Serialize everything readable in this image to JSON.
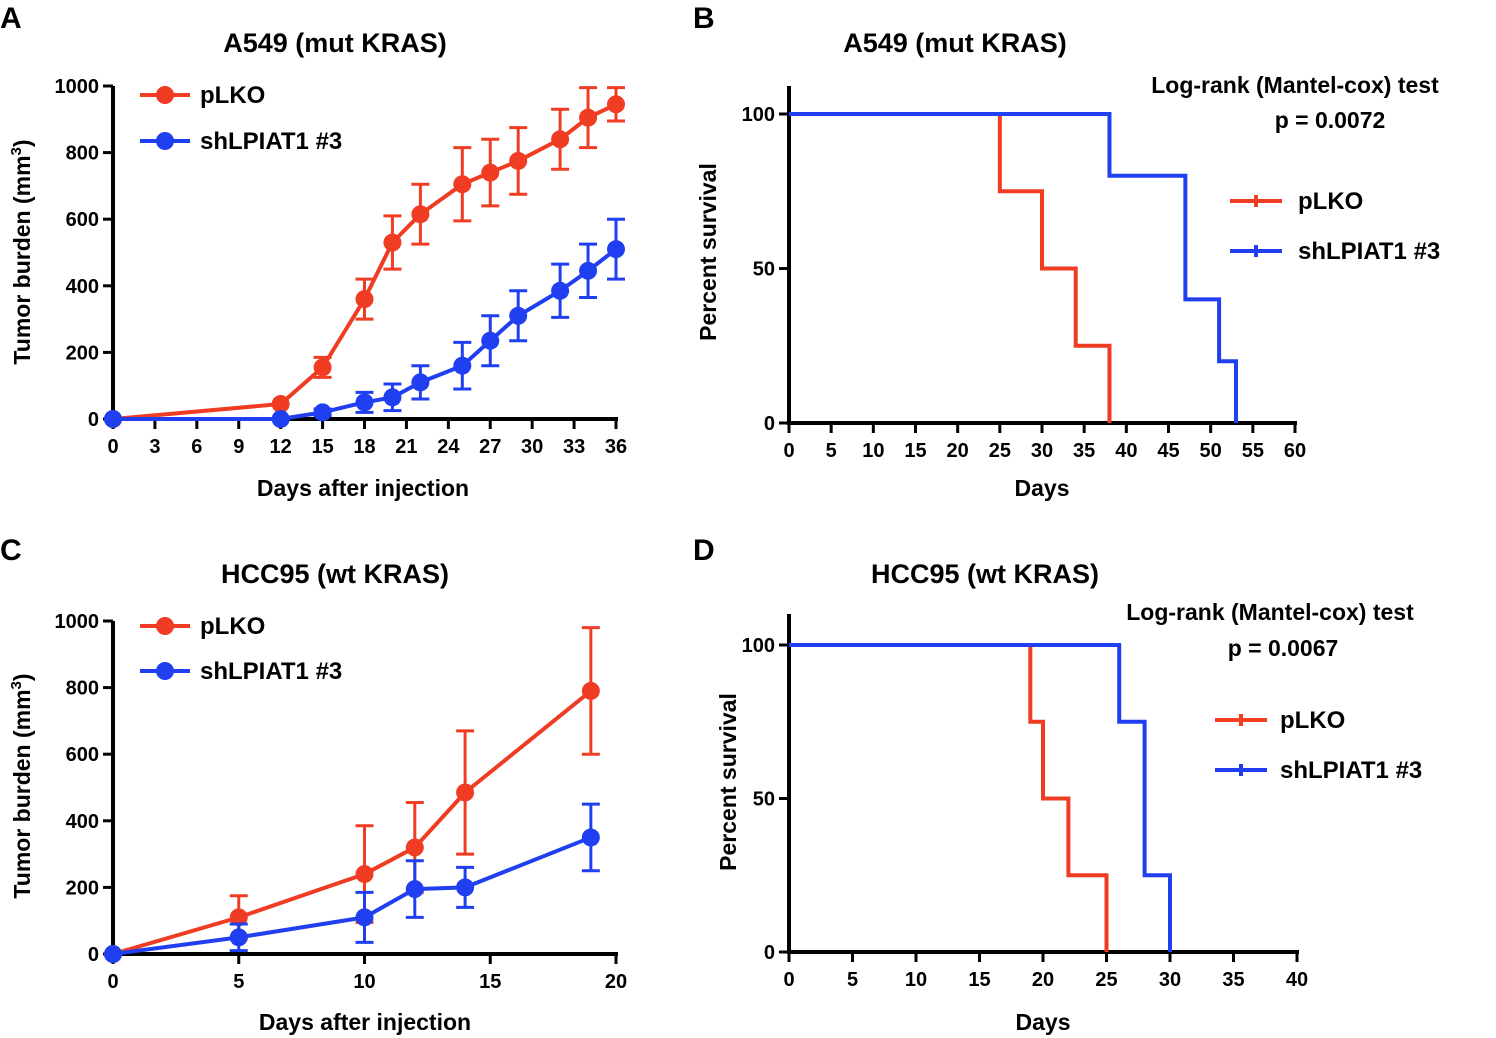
{
  "colors": {
    "red": "#f03c23",
    "blue": "#1f3ff0",
    "axis": "#000000"
  },
  "chart_data": [
    {
      "id": "A",
      "panel_label": "A",
      "type": "line",
      "title": "A549 (mut KRAS)",
      "xlabel": "Days after injection",
      "ylabel": "Tumor burden (mm",
      "ylabel_sup": "3",
      "ylabel_end": ")",
      "xlim": [
        0,
        36
      ],
      "ylim": [
        0,
        1000
      ],
      "xticks": [
        0,
        3,
        6,
        9,
        12,
        15,
        18,
        21,
        24,
        27,
        30,
        33,
        36
      ],
      "yticks": [
        0,
        200,
        400,
        600,
        800,
        1000
      ],
      "series": [
        {
          "name": "pLKO",
          "color": "red",
          "x": [
            0,
            12,
            15,
            18,
            20,
            22,
            25,
            27,
            29,
            32,
            34,
            36
          ],
          "y": [
            0,
            45,
            155,
            360,
            530,
            615,
            705,
            740,
            775,
            840,
            905,
            945
          ],
          "err": [
            0,
            0,
            30,
            60,
            80,
            90,
            110,
            100,
            100,
            90,
            90,
            50
          ]
        },
        {
          "name": "shLPIAT1 #3",
          "color": "blue",
          "x": [
            0,
            12,
            15,
            18,
            20,
            22,
            25,
            27,
            29,
            32,
            34,
            36
          ],
          "y": [
            0,
            0,
            20,
            50,
            65,
            110,
            160,
            235,
            310,
            385,
            445,
            510
          ],
          "err": [
            0,
            0,
            10,
            30,
            40,
            50,
            70,
            75,
            75,
            80,
            80,
            90
          ]
        }
      ]
    },
    {
      "id": "B",
      "panel_label": "B",
      "type": "line",
      "subtype": "survival-step",
      "title": "A549 (mut KRAS)",
      "xlabel": "Days",
      "ylabel": "Percent survival",
      "xlim": [
        0,
        60
      ],
      "ylim": [
        0,
        100
      ],
      "xticks": [
        0,
        5,
        10,
        15,
        20,
        25,
        30,
        35,
        40,
        45,
        50,
        55,
        60
      ],
      "yticks": [
        0,
        50,
        100
      ],
      "stat_line1": "Log-rank (Mantel-cox) test",
      "stat_line2": "p = 0.0072",
      "series": [
        {
          "name": "pLKO",
          "color": "red",
          "steps": [
            [
              0,
              100
            ],
            [
              25,
              75
            ],
            [
              30,
              50
            ],
            [
              34,
              25
            ],
            [
              38,
              0
            ]
          ]
        },
        {
          "name": "shLPIAT1 #3",
          "color": "blue",
          "steps": [
            [
              0,
              100
            ],
            [
              38,
              80
            ],
            [
              47,
              40
            ],
            [
              51,
              20
            ],
            [
              53,
              0
            ]
          ]
        }
      ]
    },
    {
      "id": "C",
      "panel_label": "C",
      "type": "line",
      "title": "HCC95 (wt KRAS)",
      "xlabel": "Days after injection",
      "ylabel": "Tumor burden (mm",
      "ylabel_sup": "3",
      "ylabel_end": ")",
      "xlim": [
        0,
        20
      ],
      "ylim": [
        0,
        1000
      ],
      "xticks": [
        0,
        5,
        10,
        15,
        20
      ],
      "yticks": [
        0,
        200,
        400,
        600,
        800,
        1000
      ],
      "series": [
        {
          "name": "pLKO",
          "color": "red",
          "x": [
            0,
            5,
            10,
            12,
            14,
            19
          ],
          "y": [
            0,
            110,
            240,
            320,
            485,
            790
          ],
          "err": [
            0,
            65,
            145,
            135,
            185,
            190
          ]
        },
        {
          "name": "shLPIAT1 #3",
          "color": "blue",
          "x": [
            0,
            5,
            10,
            12,
            14,
            19
          ],
          "y": [
            0,
            50,
            110,
            195,
            200,
            350
          ],
          "err": [
            0,
            40,
            75,
            85,
            60,
            100
          ]
        }
      ]
    },
    {
      "id": "D",
      "panel_label": "D",
      "type": "line",
      "subtype": "survival-step",
      "title": "HCC95 (wt KRAS)",
      "xlabel": "Days",
      "ylabel": "Percent survival",
      "xlim": [
        0,
        40
      ],
      "ylim": [
        0,
        100
      ],
      "xticks": [
        0,
        5,
        10,
        15,
        20,
        25,
        30,
        35,
        40
      ],
      "yticks": [
        0,
        50,
        100
      ],
      "stat_line1": "Log-rank (Mantel-cox) test",
      "stat_line2": "p = 0.0067",
      "series": [
        {
          "name": "pLKO",
          "color": "red",
          "steps": [
            [
              0,
              100
            ],
            [
              19,
              75
            ],
            [
              20,
              50
            ],
            [
              22,
              25
            ],
            [
              25,
              0
            ]
          ]
        },
        {
          "name": "shLPIAT1 #3",
          "color": "blue",
          "steps": [
            [
              0,
              100
            ],
            [
              26,
              75
            ],
            [
              28,
              25
            ],
            [
              30,
              0
            ]
          ]
        }
      ]
    }
  ]
}
